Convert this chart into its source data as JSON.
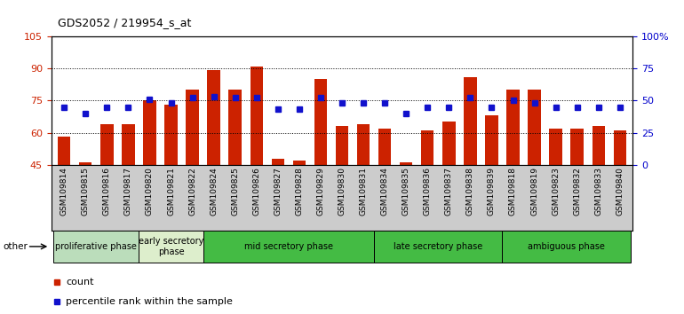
{
  "title": "GDS2052 / 219954_s_at",
  "categories": [
    "GSM109814",
    "GSM109815",
    "GSM109816",
    "GSM109817",
    "GSM109820",
    "GSM109821",
    "GSM109822",
    "GSM109824",
    "GSM109825",
    "GSM109826",
    "GSM109827",
    "GSM109828",
    "GSM109829",
    "GSM109830",
    "GSM109831",
    "GSM109834",
    "GSM109835",
    "GSM109836",
    "GSM109837",
    "GSM109838",
    "GSM109839",
    "GSM109818",
    "GSM109819",
    "GSM109823",
    "GSM109832",
    "GSM109833",
    "GSM109840"
  ],
  "bar_values": [
    58,
    46,
    64,
    64,
    75,
    73,
    80,
    89,
    80,
    91,
    48,
    47,
    85,
    63,
    64,
    62,
    46,
    61,
    65,
    86,
    68,
    80,
    80,
    62,
    62,
    63,
    61
  ],
  "percentile_values": [
    45,
    40,
    45,
    45,
    51,
    48,
    52,
    53,
    52,
    52,
    43,
    43,
    52,
    48,
    48,
    48,
    40,
    45,
    45,
    52,
    45,
    50,
    48,
    45,
    45,
    45,
    45
  ],
  "ymin": 45,
  "ymax": 105,
  "yticks_left": [
    45,
    60,
    75,
    90,
    105
  ],
  "yticks_right": [
    0,
    25,
    50,
    75,
    100
  ],
  "ytick_labels_right": [
    "0",
    "25",
    "50",
    "75",
    "100%"
  ],
  "grid_lines": [
    60,
    75,
    90
  ],
  "bar_color": "#cc2200",
  "dot_color": "#1111cc",
  "phases": [
    {
      "label": "proliferative phase",
      "n_bars": 4,
      "color": "#bbddbb"
    },
    {
      "label": "early secretory\nphase",
      "n_bars": 3,
      "color": "#ddeecc"
    },
    {
      "label": "mid secretory phase",
      "n_bars": 8,
      "color": "#44bb44"
    },
    {
      "label": "late secretory phase",
      "n_bars": 6,
      "color": "#44bb44"
    },
    {
      "label": "ambiguous phase",
      "n_bars": 6,
      "color": "#44bb44"
    }
  ],
  "legend": [
    {
      "label": "count",
      "color": "#cc2200"
    },
    {
      "label": "percentile rank within the sample",
      "color": "#1111cc"
    }
  ],
  "other_label": "other",
  "tick_bg_color": "#cccccc",
  "chart_bg_color": "#ffffff"
}
